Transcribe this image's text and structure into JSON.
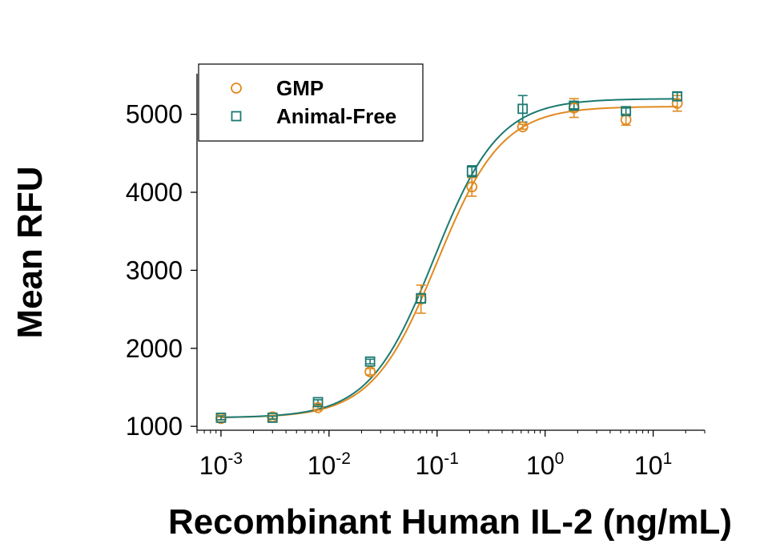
{
  "chart_data": {
    "type": "scatter",
    "xlabel": "Recombinant Human IL-2 (ng/mL)",
    "ylabel": "Mean RFU",
    "xscale": "log",
    "xlim": [
      0.0006,
      30
    ],
    "ylim": [
      950,
      5520
    ],
    "x_ticks": [
      {
        "base": "10",
        "exp": "-3",
        "value": 0.001
      },
      {
        "base": "10",
        "exp": "-2",
        "value": 0.01
      },
      {
        "base": "10",
        "exp": "-1",
        "value": 0.1
      },
      {
        "base": "10",
        "exp": "0",
        "value": 1
      },
      {
        "base": "10",
        "exp": "1",
        "value": 10
      }
    ],
    "y_ticks": [
      {
        "label": "1000",
        "value": 1000
      },
      {
        "label": "2000",
        "value": 2000
      },
      {
        "label": "3000",
        "value": 3000
      },
      {
        "label": "4000",
        "value": 4000
      },
      {
        "label": "5000",
        "value": 5000
      }
    ],
    "grid": false,
    "legend_position": "top-left",
    "series": [
      {
        "name": "GMP",
        "marker": "circle",
        "color": "#E08A1E",
        "points": [
          {
            "x": 0.001,
            "y": 1100,
            "err": 20
          },
          {
            "x": 0.003,
            "y": 1120,
            "err": 20
          },
          {
            "x": 0.0079,
            "y": 1240,
            "err": 30
          },
          {
            "x": 0.024,
            "y": 1700,
            "err": 40
          },
          {
            "x": 0.071,
            "y": 2630,
            "err": 180
          },
          {
            "x": 0.21,
            "y": 4070,
            "err": 120
          },
          {
            "x": 0.62,
            "y": 4840,
            "err": 30
          },
          {
            "x": 1.85,
            "y": 5080,
            "err": 120
          },
          {
            "x": 5.6,
            "y": 4930,
            "err": 70
          },
          {
            "x": 16.7,
            "y": 5140,
            "err": 100
          }
        ],
        "fit": {
          "bottom": 1110,
          "top": 5100,
          "ec50": 0.1,
          "hill": 1.45
        }
      },
      {
        "name": "Animal-Free",
        "marker": "square",
        "color": "#1B7A72",
        "points": [
          {
            "x": 0.001,
            "y": 1110,
            "err": 25
          },
          {
            "x": 0.003,
            "y": 1110,
            "err": 20
          },
          {
            "x": 0.0079,
            "y": 1310,
            "err": 30
          },
          {
            "x": 0.024,
            "y": 1830,
            "err": 30
          },
          {
            "x": 0.071,
            "y": 2640,
            "err": 60
          },
          {
            "x": 0.21,
            "y": 4270,
            "err": 70
          },
          {
            "x": 0.62,
            "y": 5070,
            "err": 170
          },
          {
            "x": 1.85,
            "y": 5110,
            "err": 40
          },
          {
            "x": 5.6,
            "y": 5040,
            "err": 40
          },
          {
            "x": 16.7,
            "y": 5230,
            "err": 50
          }
        ],
        "fit": {
          "bottom": 1110,
          "top": 5200,
          "ec50": 0.094,
          "hill": 1.45
        }
      }
    ]
  }
}
